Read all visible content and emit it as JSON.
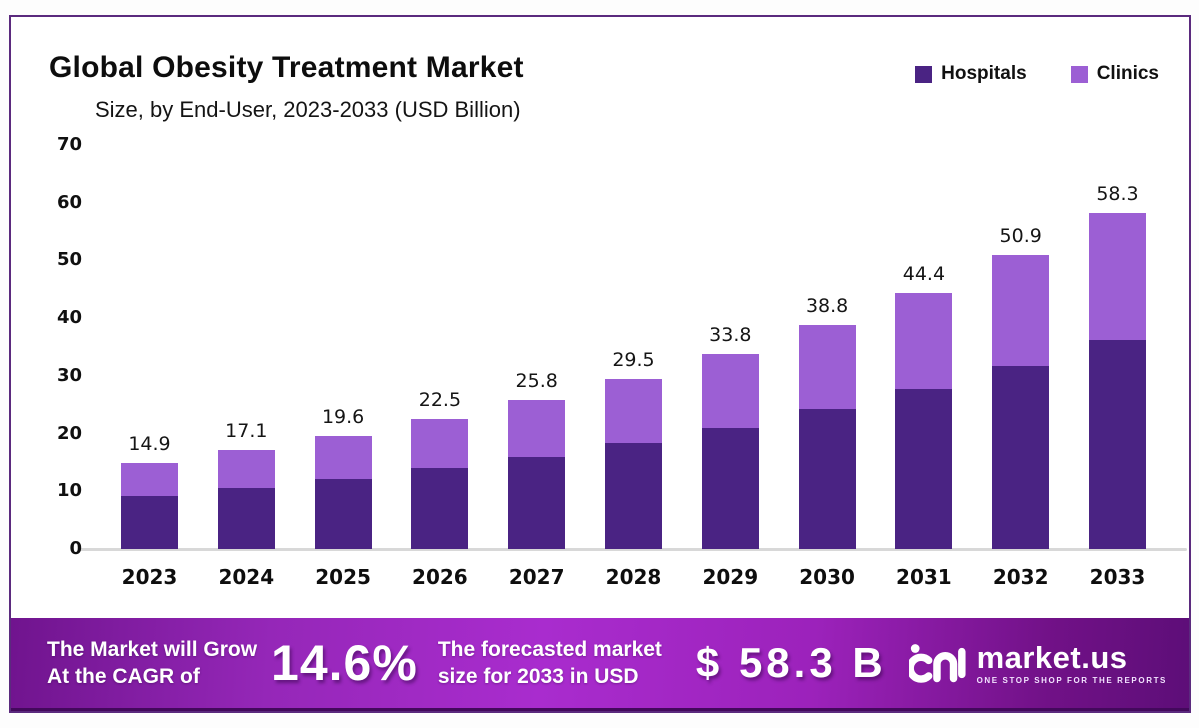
{
  "header": {
    "title": "Global Obesity Treatment Market",
    "subtitle": "Size, by End-User, 2023-2033 (USD Billion)"
  },
  "legend": [
    {
      "label": "Hospitals",
      "color": "#4a2383"
    },
    {
      "label": "Clinics",
      "color": "#9c5fd4"
    }
  ],
  "chart_data": {
    "type": "bar",
    "stacked": true,
    "title": "Global Obesity Treatment Market Size, by End-User, 2023-2033 (USD Billion)",
    "xlabel": "",
    "ylabel": "",
    "categories": [
      "2023",
      "2024",
      "2025",
      "2026",
      "2027",
      "2028",
      "2029",
      "2030",
      "2031",
      "2032",
      "2033"
    ],
    "series": [
      {
        "name": "Hospitals",
        "color": "#4a2383",
        "values": [
          9.2,
          10.6,
          12.1,
          14.0,
          16.0,
          18.3,
          21.0,
          24.2,
          27.7,
          31.7,
          36.3
        ]
      },
      {
        "name": "Clinics",
        "color": "#9c5fd4",
        "values": [
          5.7,
          6.5,
          7.5,
          8.5,
          9.8,
          11.2,
          12.8,
          14.6,
          16.7,
          19.2,
          22.0
        ]
      }
    ],
    "totals": [
      14.9,
      17.1,
      19.6,
      22.5,
      25.8,
      29.5,
      33.8,
      38.8,
      44.4,
      50.9,
      58.3
    ],
    "total_labels": [
      "14.9",
      "17.1",
      "19.6",
      "22.5",
      "25.8",
      "29.5",
      "33.8",
      "38.8",
      "44.4",
      "50.9",
      "58.3"
    ],
    "yticks": [
      0,
      10,
      20,
      30,
      40,
      50,
      60,
      70
    ],
    "ylim": [
      0,
      70
    ],
    "grid": false,
    "legend_position": "top-right"
  },
  "banner": {
    "cagr_label_line1": "The Market will Grow",
    "cagr_label_line2": "At the CAGR of",
    "cagr_value": "14.6%",
    "forecast_label_line1": "The forecasted market",
    "forecast_label_line2": "size for 2033 in USD",
    "forecast_value": "$ 58.3 B",
    "brand": {
      "name": "market.us",
      "tagline": "ONE STOP SHOP FOR THE REPORTS"
    }
  },
  "colors": {
    "hospitals": "#4a2383",
    "clinics": "#9c5fd4",
    "card_border": "#5b2a7e",
    "banner_gradient_start": "#70148e",
    "banner_gradient_mid": "#a92cce",
    "banner_gradient_end": "#5d0e78",
    "axis_line": "#d8d8d8"
  }
}
